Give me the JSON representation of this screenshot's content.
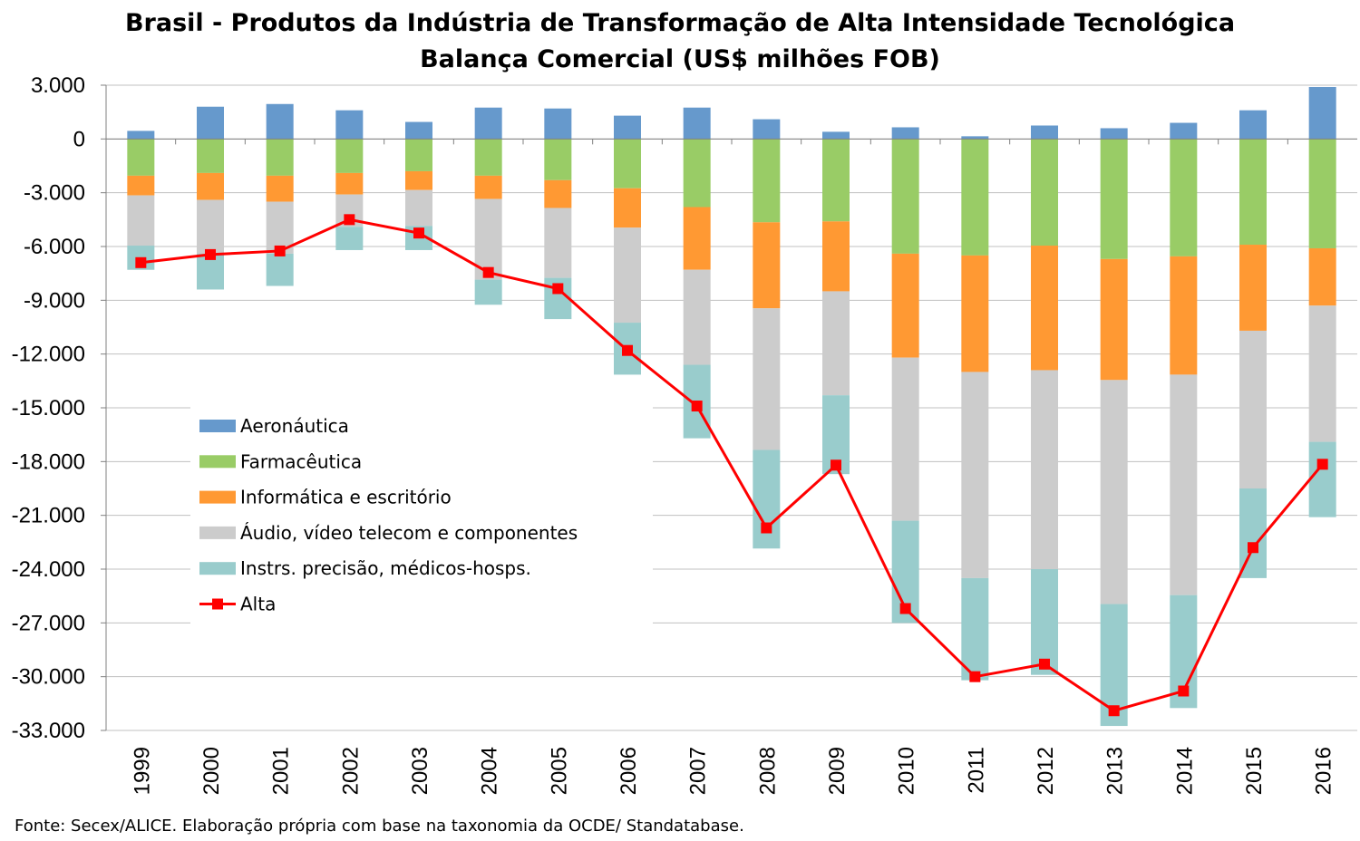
{
  "chart_data": {
    "type": "bar",
    "title": "Brasil - Produtos da Indústria de Transformação de Alta Intensidade Tecnológica",
    "subtitle": "Balança Comercial (US$ milhões FOB)",
    "xlabel": "",
    "ylabel": "",
    "ylim": [
      -33000,
      3000
    ],
    "yticks": [
      3000,
      0,
      -3000,
      -6000,
      -9000,
      -12000,
      -15000,
      -18000,
      -21000,
      -24000,
      -27000,
      -30000,
      -33000
    ],
    "ytick_labels": [
      "3.000",
      "0",
      "-3.000",
      "-6.000",
      "-9.000",
      "-12.000",
      "-15.000",
      "-18.000",
      "-21.000",
      "-24.000",
      "-27.000",
      "-30.000",
      "-33.000"
    ],
    "grid": true,
    "legend_position": "left-center",
    "stacked": true,
    "categories": [
      "1999",
      "2000",
      "2001",
      "2002",
      "2003",
      "2004",
      "2005",
      "2006",
      "2007",
      "2008",
      "2009",
      "2010",
      "2011",
      "2012",
      "2013",
      "2014",
      "2015",
      "2016"
    ],
    "series": [
      {
        "name": "Aeronáutica",
        "type": "bar",
        "color": "#6699cc",
        "values": [
          450,
          1800,
          1950,
          1600,
          950,
          1750,
          1700,
          1300,
          1750,
          1100,
          400,
          650,
          150,
          750,
          600,
          900,
          1600,
          2900
        ]
      },
      {
        "name": "Farmacêutica",
        "type": "bar",
        "color": "#99cc66",
        "values": [
          -2050,
          -1900,
          -2050,
          -1900,
          -1800,
          -2050,
          -2300,
          -2750,
          -3800,
          -4650,
          -4600,
          -6400,
          -6500,
          -5950,
          -6700,
          -6550,
          -5900,
          -6100
        ]
      },
      {
        "name": "Informática e escritório",
        "type": "bar",
        "color": "#ff9933",
        "values": [
          -1100,
          -1500,
          -1450,
          -1200,
          -1050,
          -1300,
          -1550,
          -2200,
          -3500,
          -4800,
          -3900,
          -5800,
          -6500,
          -6950,
          -6750,
          -6600,
          -4800,
          -3200
        ]
      },
      {
        "name": "Áudio, vídeo telecom e componentes",
        "type": "bar",
        "color": "#cccccc",
        "values": [
          -2800,
          -3000,
          -2900,
          -1800,
          -2000,
          -4500,
          -3900,
          -5300,
          -5300,
          -7900,
          -5800,
          -9100,
          -11500,
          -11100,
          -12500,
          -12300,
          -8800,
          -7600
        ]
      },
      {
        "name": "Instrs. precisão, médicos-hosps.",
        "type": "bar",
        "color": "#99cccc",
        "values": [
          -1350,
          -2000,
          -1800,
          -1300,
          -1350,
          -1400,
          -2300,
          -2900,
          -4100,
          -5500,
          -4400,
          -5700,
          -5700,
          -5900,
          -6800,
          -6300,
          -5000,
          -4200
        ]
      },
      {
        "name": "Alta",
        "type": "line",
        "color": "#ff0000",
        "values": [
          -6900,
          -6450,
          -6250,
          -4500,
          -5250,
          -7450,
          -8350,
          -11800,
          -14900,
          -21700,
          -18200,
          -26200,
          -30000,
          -29300,
          -31900,
          -30800,
          -22800,
          -18150
        ]
      }
    ]
  },
  "source": "Fonte: Secex/ALICE. Elaboração própria com base na taxonomia da OCDE/ Standatabase."
}
